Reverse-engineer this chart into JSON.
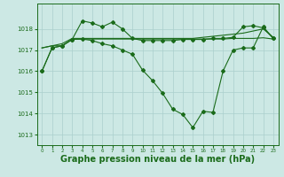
{
  "bg_color": "#cce8e4",
  "line_color": "#1a6b1a",
  "grid_color": "#aacfcc",
  "xlabel": "Graphe pression niveau de la mer (hPa)",
  "xlabel_fontsize": 7.0,
  "xlim": [
    -0.5,
    23.5
  ],
  "ylim": [
    1012.5,
    1019.2
  ],
  "yticks": [
    1013,
    1014,
    1015,
    1016,
    1017,
    1018
  ],
  "xticks": [
    0,
    1,
    2,
    3,
    4,
    5,
    6,
    7,
    8,
    9,
    10,
    11,
    12,
    13,
    14,
    15,
    16,
    17,
    18,
    19,
    20,
    21,
    22,
    23
  ],
  "series_peak_x": [
    0,
    1,
    2,
    3,
    4,
    5,
    6,
    7,
    8,
    9,
    10,
    11,
    12,
    13,
    14,
    15,
    16,
    17,
    18,
    19,
    20,
    21,
    22,
    23
  ],
  "series_peak_y": [
    1016.0,
    1017.1,
    1017.2,
    1017.5,
    1018.38,
    1018.28,
    1018.1,
    1018.32,
    1018.0,
    1017.55,
    1017.45,
    1017.45,
    1017.45,
    1017.45,
    1017.5,
    1017.5,
    1017.5,
    1017.55,
    1017.55,
    1017.6,
    1018.1,
    1018.15,
    1018.05,
    1017.55
  ],
  "series_flat1_x": [
    0,
    1,
    2,
    3,
    4,
    5,
    6,
    7,
    8,
    9,
    10,
    11,
    12,
    13,
    14,
    15,
    16,
    17,
    18,
    19,
    20,
    21,
    22,
    23
  ],
  "series_flat1_y": [
    1017.1,
    1017.2,
    1017.3,
    1017.55,
    1017.55,
    1017.55,
    1017.55,
    1017.55,
    1017.55,
    1017.55,
    1017.55,
    1017.55,
    1017.55,
    1017.55,
    1017.55,
    1017.55,
    1017.6,
    1017.65,
    1017.7,
    1017.75,
    1017.8,
    1017.9,
    1018.0,
    1017.6
  ],
  "series_flat2_x": [
    0,
    1,
    2,
    3,
    4,
    5,
    6,
    7,
    8,
    9,
    10,
    11,
    12,
    13,
    14,
    15,
    16,
    17,
    18,
    19,
    20,
    21,
    22,
    23
  ],
  "series_flat2_y": [
    1017.1,
    1017.2,
    1017.2,
    1017.5,
    1017.52,
    1017.52,
    1017.52,
    1017.52,
    1017.52,
    1017.52,
    1017.52,
    1017.52,
    1017.52,
    1017.52,
    1017.52,
    1017.52,
    1017.52,
    1017.52,
    1017.52,
    1017.55,
    1017.55,
    1017.55,
    1017.58,
    1017.52
  ],
  "series_dip_x": [
    0,
    1,
    2,
    3,
    4,
    5,
    6,
    7,
    8,
    9,
    10,
    11,
    12,
    13,
    14,
    15,
    16,
    17,
    18,
    19,
    20,
    21,
    22,
    23
  ],
  "series_dip_y": [
    1016.0,
    1017.1,
    1017.2,
    1017.5,
    1017.52,
    1017.45,
    1017.3,
    1017.2,
    1017.0,
    1016.8,
    1016.05,
    1015.55,
    1014.95,
    1014.2,
    1013.95,
    1013.33,
    1014.1,
    1014.05,
    1016.0,
    1017.0,
    1017.1,
    1017.1,
    1018.1,
    1017.55
  ]
}
